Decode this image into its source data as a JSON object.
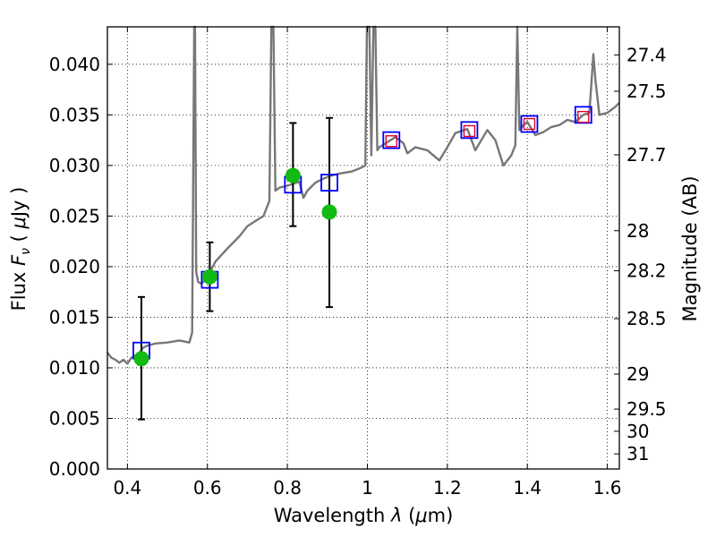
{
  "chart_data": {
    "type": "scatter",
    "title": "",
    "xlabel": "Wavelength  λ (μm)",
    "ylabel": "Flux  F_ν  ( μJy )",
    "ylabel_parts": {
      "pre": "Flux  ",
      "var": "F",
      "sub": "ν",
      "post": "  ( ",
      "mu": "μ",
      "unit": "Jy )"
    },
    "xlabel_parts": {
      "pre": "Wavelength  ",
      "var": "λ",
      "mid": " (",
      "mu": "μ",
      "unit": "m)"
    },
    "y2label": "Magnitude (AB)",
    "xlim": [
      0.35,
      1.63
    ],
    "ylim": [
      0.0,
      0.0437
    ],
    "grid": true,
    "x_ticks": [
      0.4,
      0.6,
      0.8,
      1.0,
      1.2,
      1.4,
      1.6
    ],
    "x_tick_labels": [
      "0.4",
      "0.6",
      "0.8",
      "1",
      "1.2",
      "1.4",
      "1.6"
    ],
    "y_ticks": [
      0.0,
      0.005,
      0.01,
      0.015,
      0.02,
      0.025,
      0.03,
      0.035,
      0.04
    ],
    "y_tick_labels": [
      "0.000",
      "0.005",
      "0.010",
      "0.015",
      "0.020",
      "0.025",
      "0.030",
      "0.035",
      "0.040"
    ],
    "y2_ticks": [
      {
        "label": "27.4",
        "flux": 0.04093
      },
      {
        "label": "27.5",
        "flux": 0.03733
      },
      {
        "label": "27.7",
        "flux": 0.03105
      },
      {
        "label": "28",
        "flux": 0.02355
      },
      {
        "label": "28.2",
        "flux": 0.01959
      },
      {
        "label": "28.5",
        "flux": 0.01486
      },
      {
        "label": "29",
        "flux": 0.00938
      },
      {
        "label": "29.5",
        "flux": 0.00592
      },
      {
        "label": "30",
        "flux": 0.00373
      },
      {
        "label": "31",
        "flux": 0.00149
      }
    ],
    "sed_model": {
      "color": "#777777",
      "x": [
        0.35,
        0.36,
        0.37,
        0.38,
        0.39,
        0.4,
        0.41,
        0.42,
        0.43,
        0.44,
        0.45,
        0.47,
        0.5,
        0.53,
        0.555,
        0.562,
        0.567,
        0.569,
        0.572,
        0.577,
        0.585,
        0.6,
        0.62,
        0.65,
        0.68,
        0.7,
        0.72,
        0.74,
        0.755,
        0.76,
        0.765,
        0.77,
        0.78,
        0.8,
        0.815,
        0.83,
        0.84,
        0.85,
        0.87,
        0.89,
        0.91,
        0.93,
        0.96,
        0.98,
        0.995,
        0.999,
        1.005,
        1.01,
        1.015,
        1.02,
        1.025,
        1.03,
        1.05,
        1.07,
        1.09,
        1.1,
        1.12,
        1.15,
        1.18,
        1.2,
        1.22,
        1.25,
        1.27,
        1.3,
        1.32,
        1.34,
        1.36,
        1.37,
        1.375,
        1.38,
        1.39,
        1.4,
        1.42,
        1.44,
        1.46,
        1.48,
        1.5,
        1.52,
        1.54,
        1.555,
        1.56,
        1.565,
        1.57,
        1.58,
        1.6,
        1.62,
        1.63
      ],
      "y": [
        0.0115,
        0.011,
        0.0108,
        0.0105,
        0.0108,
        0.0104,
        0.011,
        0.0112,
        0.0115,
        0.012,
        0.0122,
        0.0124,
        0.0125,
        0.0127,
        0.0125,
        0.0135,
        0.044,
        0.044,
        0.0195,
        0.0185,
        0.0183,
        0.019,
        0.0205,
        0.0218,
        0.023,
        0.024,
        0.0245,
        0.025,
        0.0265,
        0.044,
        0.044,
        0.0275,
        0.0278,
        0.028,
        0.0282,
        0.0284,
        0.0268,
        0.0275,
        0.0283,
        0.0287,
        0.029,
        0.0292,
        0.0294,
        0.0297,
        0.03,
        0.044,
        0.044,
        0.031,
        0.044,
        0.044,
        0.0315,
        0.0318,
        0.0323,
        0.0328,
        0.0322,
        0.0312,
        0.0318,
        0.0315,
        0.0305,
        0.0318,
        0.0332,
        0.0336,
        0.0315,
        0.0335,
        0.0325,
        0.03,
        0.031,
        0.032,
        0.044,
        0.0335,
        0.034,
        0.0343,
        0.033,
        0.0333,
        0.0338,
        0.034,
        0.0345,
        0.0343,
        0.035,
        0.0352,
        0.038,
        0.041,
        0.0385,
        0.035,
        0.0352,
        0.0358,
        0.0362
      ]
    },
    "series": [
      {
        "name": "",
        "marker": "square",
        "color": "#0000ff",
        "x": [
          0.435,
          0.606,
          0.814,
          0.905,
          1.06,
          1.255,
          1.405,
          1.54
        ],
        "y": [
          0.0117,
          0.0187,
          0.0281,
          0.0283,
          0.0325,
          0.0335,
          0.0341,
          0.035
        ]
      },
      {
        "name": "",
        "marker": "square",
        "color": "#e0002e",
        "x": [
          1.06,
          1.255,
          1.405,
          1.54
        ],
        "y": [
          0.0324,
          0.0334,
          0.0341,
          0.0348
        ]
      },
      {
        "name": "",
        "marker": "circle",
        "color": "#11bb11",
        "x": [
          0.435,
          0.606,
          0.814,
          0.905
        ],
        "y": [
          0.0109,
          0.019,
          0.029,
          0.0254
        ],
        "yerr_low": [
          0.0049,
          0.0156,
          0.024,
          0.016
        ],
        "yerr_high": [
          0.017,
          0.0224,
          0.0342,
          0.0347
        ]
      }
    ]
  }
}
